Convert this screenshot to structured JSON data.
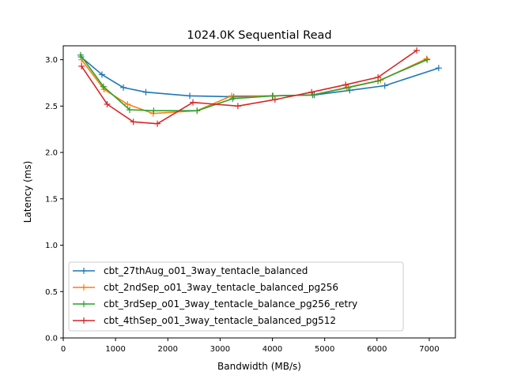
{
  "chart_data": {
    "type": "line",
    "title": "1024.0K  Sequential Read",
    "xlabel": "Bandwidth (MB/s)",
    "ylabel": "Latency (ms)",
    "xlim": [
      0,
      7500
    ],
    "ylim": [
      0,
      3.15
    ],
    "xticks": [
      0,
      1000,
      2000,
      3000,
      4000,
      5000,
      6000,
      7000
    ],
    "xtick_labels": [
      "0",
      "1000",
      "2000",
      "3000",
      "4000",
      "5000",
      "6000",
      "7000"
    ],
    "yticks": [
      0,
      0.5,
      1.0,
      1.5,
      2.0,
      2.5,
      3.0
    ],
    "ytick_labels": [
      "0.0",
      "0.5",
      "1.0",
      "1.5",
      "2.0",
      "2.5",
      "3.0"
    ],
    "grid": false,
    "legend_position": "lower-left",
    "marker": "+",
    "series": [
      {
        "name": "cbt_27thAug_o01_3way_tentacle_balanced",
        "color": "#1f77b4",
        "x": [
          340,
          740,
          1150,
          1580,
          2420,
          3260,
          4010,
          4800,
          5480,
          6150,
          7180
        ],
        "y": [
          3.03,
          2.84,
          2.7,
          2.65,
          2.61,
          2.6,
          2.61,
          2.62,
          2.67,
          2.72,
          2.91
        ]
      },
      {
        "name": "cbt_2ndSep_o01_3way_tentacle_balanced_pg256",
        "color": "#ff7f0e",
        "x": [
          350,
          780,
          1230,
          1720,
          2560,
          3220,
          4010,
          4770,
          5420,
          6070,
          6950
        ],
        "y": [
          3.0,
          2.68,
          2.52,
          2.42,
          2.45,
          2.61,
          2.61,
          2.62,
          2.7,
          2.78,
          3.01
        ]
      },
      {
        "name": "cbt_3rdSep_o01_3way_tentacle_balance_pg256_retry",
        "color": "#2ca02c",
        "x": [
          330,
          770,
          1270,
          1730,
          2560,
          3240,
          4000,
          4770,
          5450,
          6020,
          6960
        ],
        "y": [
          3.05,
          2.71,
          2.46,
          2.45,
          2.45,
          2.58,
          2.61,
          2.62,
          2.7,
          2.77,
          3.0
        ]
      },
      {
        "name": "cbt_4thSep_o01_3way_tentacle_balanced_pg512",
        "color": "#d62728",
        "x": [
          350,
          840,
          1340,
          1800,
          2480,
          3340,
          4050,
          4750,
          5400,
          6020,
          6760
        ],
        "y": [
          2.93,
          2.52,
          2.33,
          2.31,
          2.54,
          2.5,
          2.57,
          2.65,
          2.73,
          2.81,
          3.1
        ]
      }
    ]
  }
}
